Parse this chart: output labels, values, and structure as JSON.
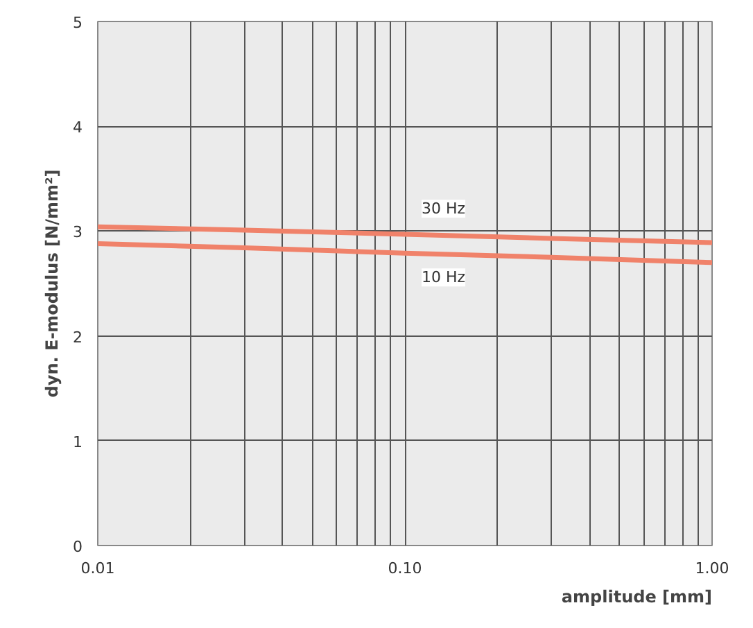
{
  "chart_data": {
    "type": "line",
    "xlabel": "amplitude [mm]",
    "ylabel": "dyn. E-modulus [N/mm²]",
    "log": "x",
    "grid": true,
    "legend": false,
    "marker": "none",
    "line_style": "solid",
    "xlim": [
      0.01,
      1.0
    ],
    "ylim": [
      0,
      5
    ],
    "xticks": [
      {
        "value": 0.01,
        "label": "0.01"
      },
      {
        "value": 0.02,
        "label": null
      },
      {
        "value": 0.03,
        "label": null
      },
      {
        "value": 0.04,
        "label": null
      },
      {
        "value": 0.05,
        "label": null
      },
      {
        "value": 0.06,
        "label": null
      },
      {
        "value": 0.07,
        "label": null
      },
      {
        "value": 0.08,
        "label": null
      },
      {
        "value": 0.09,
        "label": null
      },
      {
        "value": 0.1,
        "label": "0.10"
      },
      {
        "value": 0.2,
        "label": null
      },
      {
        "value": 0.3,
        "label": null
      },
      {
        "value": 0.4,
        "label": null
      },
      {
        "value": 0.5,
        "label": null
      },
      {
        "value": 0.6,
        "label": null
      },
      {
        "value": 0.7,
        "label": null
      },
      {
        "value": 0.8,
        "label": null
      },
      {
        "value": 0.9,
        "label": null
      },
      {
        "value": 1.0,
        "label": "1.00"
      }
    ],
    "yticks": [
      0,
      1,
      2,
      3,
      4,
      5
    ],
    "x": [
      0.01,
      0.03,
      0.1,
      0.3,
      1.0
    ],
    "series": [
      {
        "name": "30 Hz",
        "color": "#f0826a",
        "values": [
          3.04,
          3.01,
          2.97,
          2.93,
          2.89
        ]
      },
      {
        "name": "10 Hz",
        "color": "#f0826a",
        "values": [
          2.88,
          2.84,
          2.79,
          2.75,
          2.7
        ]
      }
    ]
  }
}
